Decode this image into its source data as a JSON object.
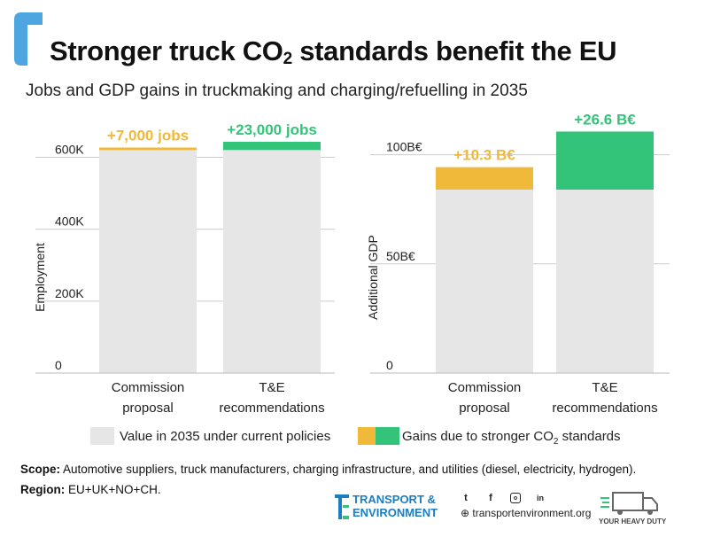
{
  "header": {
    "title_pre": "Stronger truck CO",
    "title_sub": "2",
    "title_post": " standards benefit the EU",
    "subtitle": "Jobs and GDP gains in truckmaking and charging/refuelling in 2035"
  },
  "colors": {
    "base": "#e6e6e6",
    "commission_gain": "#f0b93a",
    "te_gain": "#33c47a",
    "grid": "#cccccc",
    "brand_blue": "#4ea6e0"
  },
  "chart_data": [
    {
      "type": "bar",
      "stacked": true,
      "ylabel": "Employment",
      "yticks": [
        "0",
        "200K",
        "400K",
        "600K"
      ],
      "ylim": [
        0,
        680000
      ],
      "grid": true,
      "categories": [
        "Commission proposal",
        "T&E recommendations"
      ],
      "series": [
        {
          "name": "Value in 2035 under current policies",
          "values": [
            620000,
            620000
          ]
        },
        {
          "name": "Gains due to stronger CO2 standards",
          "values": [
            7000,
            23000
          ]
        }
      ],
      "annotations": [
        "+7,000 jobs",
        "+23,000 jobs"
      ]
    },
    {
      "type": "bar",
      "stacked": true,
      "ylabel": "Additional GDP",
      "yticks": [
        "0",
        "50B€",
        "100B€"
      ],
      "ylim": [
        0,
        112
      ],
      "grid": true,
      "categories": [
        "Commission proposal",
        "T&E recommendations"
      ],
      "series": [
        {
          "name": "Value in 2035 under current policies",
          "values": [
            84,
            84
          ]
        },
        {
          "name": "Gains due to stronger CO2 standards",
          "values": [
            10.3,
            26.6
          ]
        }
      ],
      "annotations": [
        "+10.3 B€",
        "+26.6 B€"
      ]
    }
  ],
  "legend": {
    "base_label": "Value in 2035 under current policies",
    "gain_label_pre": "Gains due to stronger CO",
    "gain_label_sub": "2",
    "gain_label_post": " standards"
  },
  "footer": {
    "scope_label": "Scope:",
    "scope_text": " Automotive suppliers, truck manufacturers, charging infrastructure, and utilities (diesel, electricity, hydrogen).",
    "region_label": "Region:",
    "region_text": " EU+UK+NO+CH.",
    "org_line1": "TRANSPORT &",
    "org_line2": "ENVIRONMENT",
    "site": "transportenvironment.org",
    "campaign": "YOUR HEAVY DUTY",
    "icons": [
      "twitter-icon",
      "facebook-icon",
      "instagram-icon",
      "linkedin-icon",
      "globe-icon"
    ]
  }
}
